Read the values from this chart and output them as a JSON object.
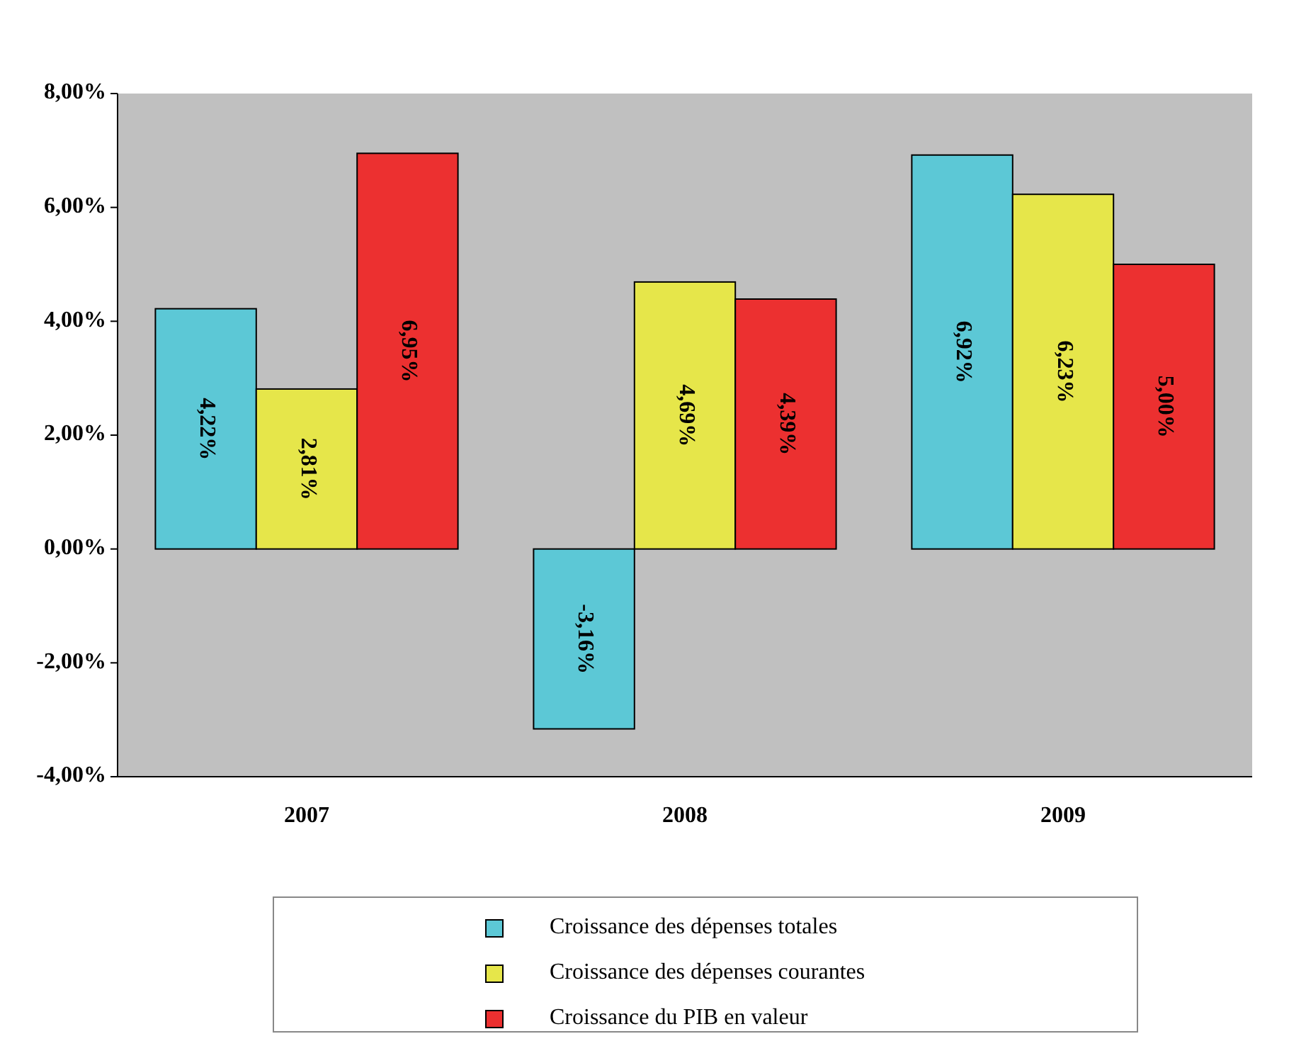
{
  "chart_data": {
    "type": "bar",
    "categories": [
      "2007",
      "2008",
      "2009"
    ],
    "series": [
      {
        "name": "Croissance des dépenses totales",
        "color": "#5cc8d6",
        "values": [
          4.22,
          -3.16,
          6.92
        ],
        "value_labels": [
          "4,22%",
          "-3,16%",
          "6,92%"
        ]
      },
      {
        "name": "Croissance des dépenses courantes",
        "color": "#e6e64a",
        "values": [
          2.81,
          4.69,
          6.23
        ],
        "value_labels": [
          "2,81%",
          "4,69%",
          "6,23%"
        ]
      },
      {
        "name": "Croissance du PIB en valeur",
        "color": "#ec3030",
        "values": [
          6.95,
          4.39,
          5.0
        ],
        "value_labels": [
          "6,95%",
          "4,39%",
          "5,00%"
        ]
      }
    ],
    "ylim": [
      -4,
      8
    ],
    "yticks": [
      {
        "value": -4,
        "label": "-4,00%"
      },
      {
        "value": -2,
        "label": "-2,00%"
      },
      {
        "value": 0,
        "label": "0,00%"
      },
      {
        "value": 2,
        "label": "2,00%"
      },
      {
        "value": 4,
        "label": "4,00%"
      },
      {
        "value": 6,
        "label": "6,00%"
      },
      {
        "value": 8,
        "label": "8,00%"
      }
    ],
    "legend": "bottom",
    "grid": false
  }
}
